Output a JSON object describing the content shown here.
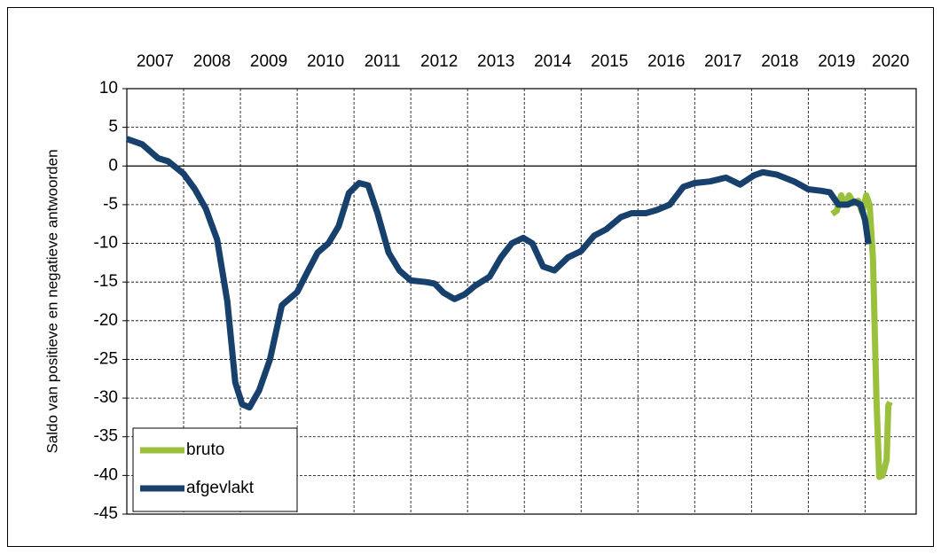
{
  "chart_data": {
    "type": "line",
    "ylabel": "Saldo van positieve en negatieve antwoorden",
    "categories": [
      "2007",
      "2008",
      "2009",
      "2010",
      "2011",
      "2012",
      "2013",
      "2014",
      "2015",
      "2016",
      "2017",
      "2018",
      "2019",
      "2020"
    ],
    "xlim": [
      2007,
      2020.9
    ],
    "xticks": [
      2008,
      2009,
      2010,
      2011,
      2012,
      2013,
      2014,
      2015,
      2016,
      2017,
      2018,
      2019,
      2020
    ],
    "ylim": [
      -45,
      10
    ],
    "yticks": [
      -45,
      -40,
      -35,
      -30,
      -25,
      -20,
      -15,
      -10,
      -5,
      0,
      5,
      10
    ],
    "grid": true,
    "legend": "lower left",
    "series": [
      {
        "name": "bruto",
        "color": "#9bc03c",
        "x": [
          2019.42,
          2019.5,
          2019.58,
          2019.64,
          2019.72,
          2019.8,
          2019.88,
          2019.95,
          2020.02,
          2020.08,
          2020.14,
          2020.2,
          2020.25,
          2020.31,
          2020.38,
          2020.41,
          2020.44
        ],
        "values": [
          -6.2,
          -5.8,
          -3.8,
          -5.0,
          -3.8,
          -4.8,
          -4.5,
          -6.0,
          -3.8,
          -5.0,
          -12,
          -30,
          -40.2,
          -40,
          -38,
          -31,
          -30.5
        ]
      },
      {
        "name": "afgevlakt",
        "color": "#17406d",
        "x": [
          2007.0,
          2007.27,
          2007.55,
          2007.73,
          2008.0,
          2008.2,
          2008.39,
          2008.59,
          2008.77,
          2008.91,
          2009.03,
          2009.16,
          2009.33,
          2009.52,
          2009.73,
          2010.0,
          2010.16,
          2010.36,
          2010.55,
          2010.73,
          2010.91,
          2011.09,
          2011.25,
          2011.41,
          2011.61,
          2011.8,
          2012.0,
          2012.27,
          2012.42,
          2012.58,
          2012.77,
          2012.95,
          2013.13,
          2013.39,
          2013.59,
          2013.78,
          2013.98,
          2014.14,
          2014.33,
          2014.53,
          2014.77,
          2015.0,
          2015.23,
          2015.44,
          2015.7,
          2015.89,
          2016.14,
          2016.33,
          2016.56,
          2016.8,
          2017.0,
          2017.27,
          2017.55,
          2017.8,
          2018.05,
          2018.2,
          2018.44,
          2018.75,
          2019.0,
          2019.22,
          2019.38,
          2019.53,
          2019.69,
          2019.81,
          2019.92,
          2020.0,
          2020.06
        ],
        "values": [
          3.5,
          2.8,
          1.0,
          0.6,
          -1,
          -3,
          -5.5,
          -9.5,
          -17.5,
          -28,
          -30.8,
          -31.2,
          -29,
          -25,
          -18,
          -16.3,
          -14,
          -11.2,
          -10,
          -7.8,
          -3.5,
          -2.2,
          -2.5,
          -6,
          -11.2,
          -13.5,
          -14.8,
          -15,
          -15.2,
          -16.4,
          -17.2,
          -16.6,
          -15.5,
          -14.3,
          -11.8,
          -10,
          -9.3,
          -10,
          -13,
          -13.5,
          -11.8,
          -11,
          -9,
          -8.2,
          -6.6,
          -6.1,
          -6.1,
          -5.7,
          -5,
          -2.7,
          -2.2,
          -2.0,
          -1.5,
          -2.4,
          -1.2,
          -0.8,
          -1.1,
          -2.0,
          -3.0,
          -3.2,
          -3.4,
          -5.0,
          -5.0,
          -4.6,
          -5.0,
          -7,
          -10.1
        ]
      }
    ]
  }
}
